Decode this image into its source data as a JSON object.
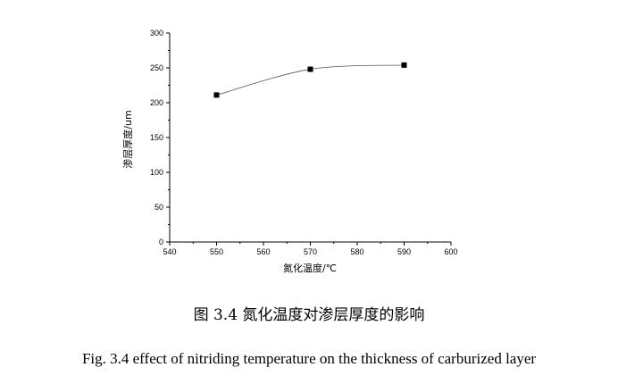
{
  "chart_data": {
    "type": "scatter",
    "x": [
      550,
      570,
      590
    ],
    "y": [
      211,
      248,
      254
    ],
    "xlim": [
      540,
      600
    ],
    "ylim": [
      0,
      300
    ],
    "xticks": [
      540,
      550,
      560,
      570,
      580,
      590,
      600
    ],
    "yticks": [
      0,
      50,
      100,
      150,
      200,
      250,
      300
    ],
    "xlabel": "氮化温度/℃",
    "ylabel": "渗层厚度/um",
    "smooth_curve": true,
    "grid": false,
    "marker": "square",
    "color": "#000000"
  },
  "caption": {
    "chinese": "图 3.4  氮化温度对渗层厚度的影响",
    "english": "Fig. 3.4 effect of nitriding temperature on the thickness of carburized layer"
  }
}
